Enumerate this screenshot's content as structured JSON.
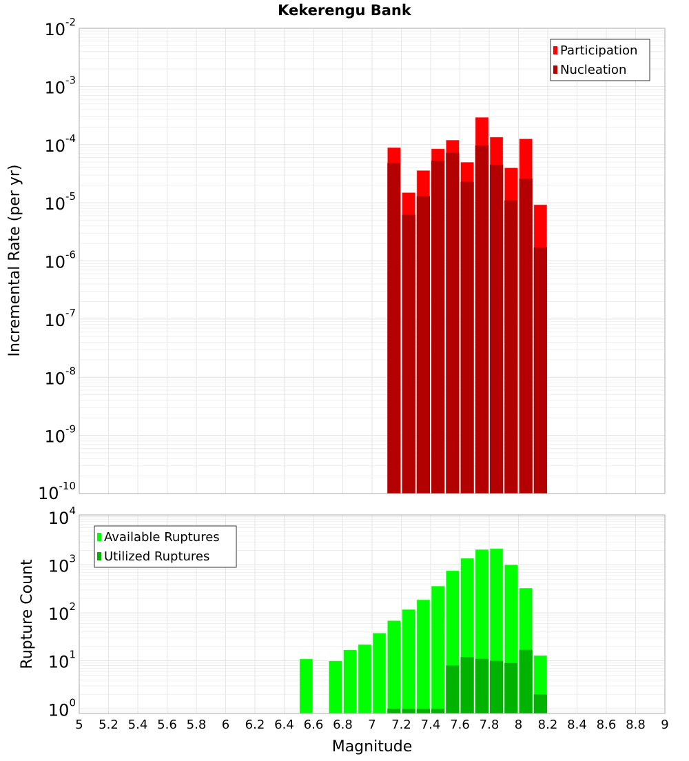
{
  "chart_data": [
    {
      "type": "bar",
      "title": "Kekerengu Bank",
      "xlabel": "",
      "ylabel": "Incremental Rate (per yr)",
      "yscale": "log",
      "ylim": [
        1e-10,
        0.01
      ],
      "xlim": [
        5,
        9
      ],
      "y_tick_exponents": [
        "-10",
        "-9",
        "-8",
        "-7",
        "-6",
        "-5",
        "-4",
        "-3",
        "-2"
      ],
      "legend_position": "top-right",
      "bin_width": 0.1,
      "x": [
        7.15,
        7.25,
        7.35,
        7.45,
        7.55,
        7.65,
        7.75,
        7.85,
        7.95,
        8.05,
        8.15
      ],
      "series": [
        {
          "name": "Participation",
          "color": "#ff0000",
          "values": [
            8.9e-05,
            1.5e-05,
            3.6e-05,
            8.5e-05,
            0.00012,
            5e-05,
            0.000295,
            0.000135,
            4e-05,
            0.000126,
            9.3e-06
          ]
        },
        {
          "name": "Nucleation",
          "color": "#b30000",
          "values": [
            4.8e-05,
            6.2e-06,
            1.3e-05,
            5.3e-05,
            7.2e-05,
            2.3e-05,
            9.7e-05,
            4.5e-05,
            1.1e-05,
            2.6e-05,
            1.7e-06
          ]
        }
      ]
    },
    {
      "type": "bar",
      "xlabel": "Magnitude",
      "ylabel": "Rupture Count",
      "yscale": "log",
      "ylim": [
        0.8,
        11000
      ],
      "xlim": [
        5,
        9
      ],
      "x_ticks": [
        "5",
        "5.2",
        "5.4",
        "5.6",
        "5.8",
        "6",
        "6.2",
        "6.4",
        "6.6",
        "6.8",
        "7",
        "7.2",
        "7.4",
        "7.6",
        "7.8",
        "8",
        "8.2",
        "8.4",
        "8.6",
        "8.8",
        "9"
      ],
      "y_tick_exponents": [
        "0",
        "1",
        "2",
        "3",
        "4"
      ],
      "legend_position": "top-left",
      "bin_width": 0.1,
      "x": [
        6.55,
        6.75,
        6.85,
        6.95,
        7.05,
        7.15,
        7.25,
        7.35,
        7.45,
        7.55,
        7.65,
        7.75,
        7.85,
        7.95,
        8.05,
        8.15
      ],
      "series": [
        {
          "name": "Available Ruptures",
          "color": "#00ff00",
          "values": [
            11,
            10,
            17,
            22,
            38,
            69,
            118,
            188,
            363,
            760,
            1380,
            2100,
            2190,
            1010,
            330,
            13
          ]
        },
        {
          "name": "Utilized Ruptures",
          "color": "#00b300",
          "values": [
            0,
            0,
            0,
            0,
            0,
            1,
            1,
            1,
            1,
            8,
            12,
            11,
            10,
            9,
            17,
            2
          ]
        }
      ]
    }
  ]
}
